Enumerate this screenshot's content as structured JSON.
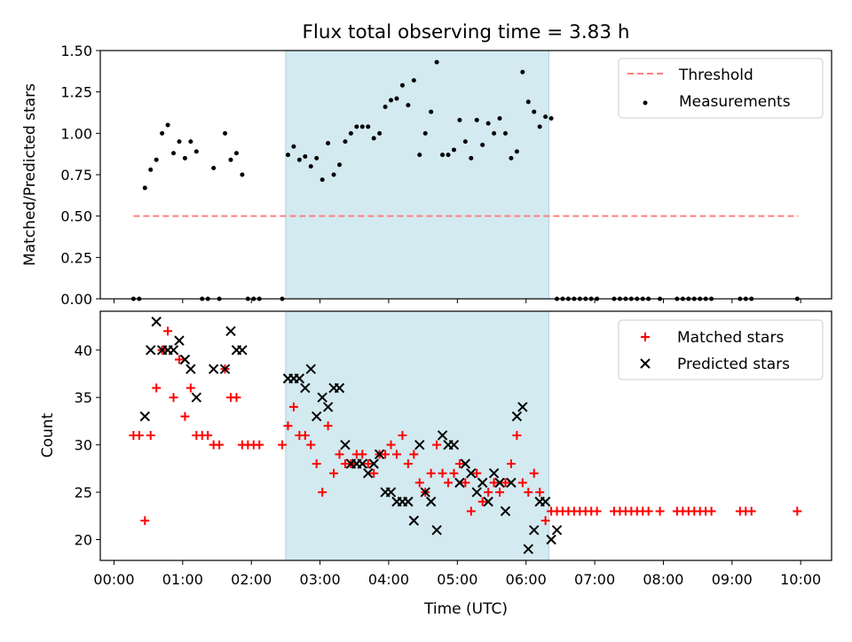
{
  "chart_data": [
    {
      "type": "scatter",
      "title": "Flux total observing time = 3.83 h",
      "ylabel": "Matched/Predicted stars",
      "xlabel": "",
      "ylim": [
        0,
        1.5
      ],
      "xlim_hours": [
        -0.2,
        10.45
      ],
      "y_ticks": [
        "0.00",
        "0.25",
        "0.50",
        "0.75",
        "1.00",
        "1.25",
        "1.50"
      ],
      "highlight_span": {
        "start": "02:30",
        "end": "06:20",
        "color": "#d3eaf0"
      },
      "threshold": {
        "name": "Threshold",
        "y": 0.5,
        "x_start": "00:17",
        "x_end": "09:58",
        "color": "#ff7f7f"
      },
      "legend_position": "upper right",
      "series": [
        {
          "name": "Measurements",
          "color": "#000000",
          "points": [
            [
              "00:17",
              0
            ],
            [
              "00:22",
              0
            ],
            [
              "00:27",
              0.67
            ],
            [
              "00:32",
              0.78
            ],
            [
              "00:37",
              0.84
            ],
            [
              "00:42",
              1.0
            ],
            [
              "00:47",
              1.05
            ],
            [
              "00:52",
              0.88
            ],
            [
              "00:57",
              0.95
            ],
            [
              "01:02",
              0.85
            ],
            [
              "01:07",
              0.95
            ],
            [
              "01:12",
              0.89
            ],
            [
              "01:17",
              0
            ],
            [
              "01:22",
              0
            ],
            [
              "01:27",
              0.79
            ],
            [
              "01:32",
              0
            ],
            [
              "01:37",
              1.0
            ],
            [
              "01:42",
              0.84
            ],
            [
              "01:47",
              0.88
            ],
            [
              "01:52",
              0.75
            ],
            [
              "01:57",
              0
            ],
            [
              "02:02",
              0
            ],
            [
              "02:07",
              0
            ],
            [
              "02:27",
              0
            ],
            [
              "02:32",
              0.87
            ],
            [
              "02:37",
              0.92
            ],
            [
              "02:42",
              0.84
            ],
            [
              "02:47",
              0.86
            ],
            [
              "02:52",
              0.8
            ],
            [
              "02:57",
              0.85
            ],
            [
              "03:02",
              0.72
            ],
            [
              "03:07",
              0.94
            ],
            [
              "03:12",
              0.75
            ],
            [
              "03:17",
              0.81
            ],
            [
              "03:22",
              0.95
            ],
            [
              "03:27",
              1.0
            ],
            [
              "03:32",
              1.04
            ],
            [
              "03:37",
              1.04
            ],
            [
              "03:42",
              1.04
            ],
            [
              "03:47",
              0.97
            ],
            [
              "03:52",
              1.0
            ],
            [
              "03:57",
              1.16
            ],
            [
              "04:02",
              1.2
            ],
            [
              "04:07",
              1.21
            ],
            [
              "04:12",
              1.29
            ],
            [
              "04:17",
              1.17
            ],
            [
              "04:22",
              1.32
            ],
            [
              "04:27",
              0.87
            ],
            [
              "04:32",
              1.0
            ],
            [
              "04:37",
              1.13
            ],
            [
              "04:42",
              1.43
            ],
            [
              "04:47",
              0.87
            ],
            [
              "04:52",
              0.87
            ],
            [
              "04:57",
              0.9
            ],
            [
              "05:02",
              1.08
            ],
            [
              "05:07",
              0.95
            ],
            [
              "05:12",
              0.85
            ],
            [
              "05:17",
              1.08
            ],
            [
              "05:22",
              0.93
            ],
            [
              "05:27",
              1.06
            ],
            [
              "05:32",
              1.0
            ],
            [
              "05:37",
              1.09
            ],
            [
              "05:42",
              1.0
            ],
            [
              "05:47",
              0.85
            ],
            [
              "05:52",
              0.89
            ],
            [
              "05:57",
              1.37
            ],
            [
              "06:02",
              1.19
            ],
            [
              "06:07",
              1.13
            ],
            [
              "06:12",
              1.04
            ],
            [
              "06:17",
              1.1
            ],
            [
              "06:22",
              1.09
            ],
            [
              "06:27",
              0
            ],
            [
              "06:32",
              0
            ],
            [
              "06:37",
              0
            ],
            [
              "06:42",
              0
            ],
            [
              "06:47",
              0
            ],
            [
              "06:52",
              0
            ],
            [
              "06:57",
              0
            ],
            [
              "07:02",
              0
            ],
            [
              "07:17",
              0
            ],
            [
              "07:22",
              0
            ],
            [
              "07:27",
              0
            ],
            [
              "07:32",
              0
            ],
            [
              "07:37",
              0
            ],
            [
              "07:42",
              0
            ],
            [
              "07:47",
              0
            ],
            [
              "07:57",
              0
            ],
            [
              "08:12",
              0
            ],
            [
              "08:17",
              0
            ],
            [
              "08:22",
              0
            ],
            [
              "08:27",
              0
            ],
            [
              "08:32",
              0
            ],
            [
              "08:37",
              0
            ],
            [
              "08:42",
              0
            ],
            [
              "09:07",
              0
            ],
            [
              "09:12",
              0
            ],
            [
              "09:17",
              0
            ],
            [
              "09:57",
              0
            ]
          ]
        }
      ]
    },
    {
      "type": "scatter",
      "title": "",
      "xlabel": "Time (UTC)",
      "ylabel": "Count",
      "ylim": [
        17.8,
        44.1
      ],
      "xlim_hours": [
        -0.2,
        10.45
      ],
      "y_ticks": [
        "20",
        "25",
        "30",
        "35",
        "40"
      ],
      "x_ticks": [
        "00:00",
        "01:00",
        "02:00",
        "03:00",
        "04:00",
        "05:00",
        "06:00",
        "07:00",
        "08:00",
        "09:00",
        "10:00"
      ],
      "highlight_span": {
        "start": "02:30",
        "end": "06:20",
        "color": "#d3eaf0"
      },
      "legend_position": "upper right",
      "series": [
        {
          "name": "Matched stars",
          "marker": "plus",
          "color": "#ff0000",
          "points": [
            [
              "00:17",
              31
            ],
            [
              "00:22",
              31
            ],
            [
              "00:27",
              22
            ],
            [
              "00:32",
              31
            ],
            [
              "00:37",
              36
            ],
            [
              "00:42",
              40
            ],
            [
              "00:47",
              42
            ],
            [
              "00:52",
              35
            ],
            [
              "00:57",
              39
            ],
            [
              "01:02",
              33
            ],
            [
              "01:07",
              36
            ],
            [
              "01:12",
              31
            ],
            [
              "01:17",
              31
            ],
            [
              "01:22",
              31
            ],
            [
              "01:27",
              30
            ],
            [
              "01:32",
              30
            ],
            [
              "01:37",
              38
            ],
            [
              "01:42",
              35
            ],
            [
              "01:47",
              35
            ],
            [
              "01:52",
              30
            ],
            [
              "01:57",
              30
            ],
            [
              "02:02",
              30
            ],
            [
              "02:07",
              30
            ],
            [
              "02:27",
              30
            ],
            [
              "02:32",
              32
            ],
            [
              "02:37",
              34
            ],
            [
              "02:42",
              31
            ],
            [
              "02:47",
              31
            ],
            [
              "02:52",
              30
            ],
            [
              "02:57",
              28
            ],
            [
              "03:02",
              25
            ],
            [
              "03:07",
              32
            ],
            [
              "03:12",
              27
            ],
            [
              "03:17",
              29
            ],
            [
              "03:22",
              28
            ],
            [
              "03:27",
              28
            ],
            [
              "03:32",
              29
            ],
            [
              "03:37",
              29
            ],
            [
              "03:42",
              28
            ],
            [
              "03:47",
              27
            ],
            [
              "03:52",
              29
            ],
            [
              "03:57",
              29
            ],
            [
              "04:02",
              30
            ],
            [
              "04:07",
              29
            ],
            [
              "04:12",
              31
            ],
            [
              "04:17",
              28
            ],
            [
              "04:22",
              29
            ],
            [
              "04:27",
              26
            ],
            [
              "04:32",
              25
            ],
            [
              "04:37",
              27
            ],
            [
              "04:42",
              30
            ],
            [
              "04:47",
              27
            ],
            [
              "04:52",
              26
            ],
            [
              "04:57",
              27
            ],
            [
              "05:02",
              28
            ],
            [
              "05:07",
              26
            ],
            [
              "05:12",
              23
            ],
            [
              "05:17",
              27
            ],
            [
              "05:22",
              24
            ],
            [
              "05:27",
              25
            ],
            [
              "05:32",
              26
            ],
            [
              "05:37",
              25
            ],
            [
              "05:42",
              26
            ],
            [
              "05:47",
              28
            ],
            [
              "05:52",
              31
            ],
            [
              "05:57",
              26
            ],
            [
              "06:02",
              25
            ],
            [
              "06:07",
              27
            ],
            [
              "06:12",
              25
            ],
            [
              "06:17",
              22
            ],
            [
              "06:22",
              23
            ],
            [
              "06:27",
              23
            ],
            [
              "06:32",
              23
            ],
            [
              "06:37",
              23
            ],
            [
              "06:42",
              23
            ],
            [
              "06:47",
              23
            ],
            [
              "06:52",
              23
            ],
            [
              "06:57",
              23
            ],
            [
              "07:02",
              23
            ],
            [
              "07:17",
              23
            ],
            [
              "07:22",
              23
            ],
            [
              "07:27",
              23
            ],
            [
              "07:32",
              23
            ],
            [
              "07:37",
              23
            ],
            [
              "07:42",
              23
            ],
            [
              "07:47",
              23
            ],
            [
              "07:57",
              23
            ],
            [
              "08:12",
              23
            ],
            [
              "08:17",
              23
            ],
            [
              "08:22",
              23
            ],
            [
              "08:27",
              23
            ],
            [
              "08:32",
              23
            ],
            [
              "08:37",
              23
            ],
            [
              "08:42",
              23
            ],
            [
              "09:07",
              23
            ],
            [
              "09:12",
              23
            ],
            [
              "09:17",
              23
            ],
            [
              "09:57",
              23
            ]
          ]
        },
        {
          "name": "Predicted stars",
          "marker": "x",
          "color": "#000000",
          "points": [
            [
              "00:27",
              33
            ],
            [
              "00:32",
              40
            ],
            [
              "00:37",
              43
            ],
            [
              "00:42",
              40
            ],
            [
              "00:47",
              40
            ],
            [
              "00:52",
              40
            ],
            [
              "00:57",
              41
            ],
            [
              "01:02",
              39
            ],
            [
              "01:07",
              38
            ],
            [
              "01:12",
              35
            ],
            [
              "01:27",
              38
            ],
            [
              "01:37",
              38
            ],
            [
              "01:42",
              42
            ],
            [
              "01:47",
              40
            ],
            [
              "01:52",
              40
            ],
            [
              "02:32",
              37
            ],
            [
              "02:37",
              37
            ],
            [
              "02:42",
              37
            ],
            [
              "02:47",
              36
            ],
            [
              "02:52",
              38
            ],
            [
              "02:57",
              33
            ],
            [
              "03:02",
              35
            ],
            [
              "03:07",
              34
            ],
            [
              "03:12",
              36
            ],
            [
              "03:17",
              36
            ],
            [
              "03:22",
              30
            ],
            [
              "03:27",
              28
            ],
            [
              "03:32",
              28
            ],
            [
              "03:37",
              28
            ],
            [
              "03:42",
              27
            ],
            [
              "03:47",
              28
            ],
            [
              "03:52",
              29
            ],
            [
              "03:57",
              25
            ],
            [
              "04:02",
              25
            ],
            [
              "04:07",
              24
            ],
            [
              "04:12",
              24
            ],
            [
              "04:17",
              24
            ],
            [
              "04:22",
              22
            ],
            [
              "04:27",
              30
            ],
            [
              "04:32",
              25
            ],
            [
              "04:37",
              24
            ],
            [
              "04:42",
              21
            ],
            [
              "04:47",
              31
            ],
            [
              "04:52",
              30
            ],
            [
              "04:57",
              30
            ],
            [
              "05:02",
              26
            ],
            [
              "05:07",
              28
            ],
            [
              "05:12",
              27
            ],
            [
              "05:17",
              25
            ],
            [
              "05:22",
              26
            ],
            [
              "05:27",
              24
            ],
            [
              "05:32",
              27
            ],
            [
              "05:37",
              26
            ],
            [
              "05:42",
              23
            ],
            [
              "05:47",
              26
            ],
            [
              "05:52",
              33
            ],
            [
              "05:57",
              34
            ],
            [
              "06:02",
              19
            ],
            [
              "06:07",
              21
            ],
            [
              "06:12",
              24
            ],
            [
              "06:17",
              24
            ],
            [
              "06:22",
              20
            ],
            [
              "06:27",
              21
            ]
          ]
        }
      ]
    }
  ]
}
